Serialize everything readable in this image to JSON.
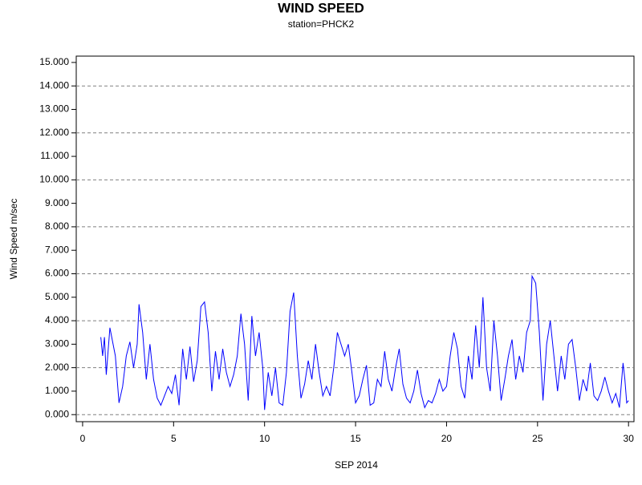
{
  "chart_data": {
    "type": "line",
    "title": "WIND SPEED",
    "subtitle": "station=PHCK2",
    "xlabel": "SEP 2014",
    "ylabel": "Wind Speed m/sec",
    "xlim": [
      -0.35,
      30.3
    ],
    "ylim": [
      -0.3,
      15.27
    ],
    "xticks": [
      0,
      5,
      10,
      15,
      20,
      25,
      30
    ],
    "yticks": [
      {
        "value": 0,
        "label": "0.000"
      },
      {
        "value": 1,
        "label": "1.000"
      },
      {
        "value": 2,
        "label": "2.000"
      },
      {
        "value": 3,
        "label": "3.000"
      },
      {
        "value": 4,
        "label": "4.000"
      },
      {
        "value": 5,
        "label": "5.000"
      },
      {
        "value": 6,
        "label": "6.000"
      },
      {
        "value": 7,
        "label": "7.000"
      },
      {
        "value": 8,
        "label": "8.000"
      },
      {
        "value": 9,
        "label": "9.000"
      },
      {
        "value": 10,
        "label": "10.000"
      },
      {
        "value": 11,
        "label": "11.000"
      },
      {
        "value": 12,
        "label": "12.000"
      },
      {
        "value": 13,
        "label": "13.000"
      },
      {
        "value": 14,
        "label": "14.000"
      },
      {
        "value": 15,
        "label": "15.000"
      }
    ],
    "grid": true,
    "x": [
      1.0,
      1.1,
      1.2,
      1.3,
      1.5,
      1.8,
      2.0,
      2.2,
      2.4,
      2.6,
      2.8,
      3.0,
      3.1,
      3.3,
      3.5,
      3.7,
      3.9,
      4.1,
      4.3,
      4.5,
      4.7,
      4.9,
      5.1,
      5.3,
      5.5,
      5.7,
      5.9,
      6.1,
      6.3,
      6.5,
      6.7,
      6.9,
      7.1,
      7.3,
      7.5,
      7.7,
      7.9,
      8.1,
      8.3,
      8.5,
      8.7,
      8.9,
      9.1,
      9.3,
      9.5,
      9.7,
      9.9,
      10.0,
      10.2,
      10.4,
      10.6,
      10.8,
      11.0,
      11.2,
      11.4,
      11.6,
      11.8,
      12.0,
      12.2,
      12.4,
      12.6,
      12.8,
      13.0,
      13.2,
      13.4,
      13.6,
      13.8,
      14.0,
      14.2,
      14.4,
      14.6,
      14.8,
      15.0,
      15.2,
      15.4,
      15.6,
      15.8,
      16.0,
      16.2,
      16.4,
      16.6,
      16.8,
      17.0,
      17.2,
      17.4,
      17.6,
      17.8,
      18.0,
      18.2,
      18.4,
      18.6,
      18.8,
      19.0,
      19.2,
      19.4,
      19.6,
      19.8,
      20.0,
      20.2,
      20.4,
      20.6,
      20.8,
      21.0,
      21.2,
      21.4,
      21.6,
      21.8,
      22.0,
      22.2,
      22.4,
      22.6,
      22.8,
      23.0,
      23.2,
      23.4,
      23.6,
      23.8,
      24.0,
      24.2,
      24.4,
      24.6,
      24.7,
      24.9,
      25.1,
      25.3,
      25.5,
      25.7,
      25.9,
      26.1,
      26.3,
      26.5,
      26.7,
      26.9,
      27.1,
      27.3,
      27.5,
      27.7,
      27.9,
      28.1,
      28.3,
      28.5,
      28.7,
      28.9,
      29.1,
      29.3,
      29.5,
      29.7,
      29.8,
      29.9,
      30.0
    ],
    "series": [
      {
        "name": "Wind Speed",
        "color": "#0000ff",
        "values": [
          3.3,
          2.5,
          3.3,
          1.7,
          3.7,
          2.5,
          0.5,
          1.2,
          2.5,
          3.1,
          2.0,
          3.0,
          4.7,
          3.5,
          1.5,
          3.0,
          1.5,
          0.7,
          0.4,
          0.8,
          1.2,
          0.9,
          1.7,
          0.4,
          2.8,
          1.5,
          2.9,
          1.4,
          2.3,
          4.6,
          4.8,
          3.5,
          1.0,
          2.7,
          1.5,
          2.8,
          1.8,
          1.2,
          1.7,
          2.5,
          4.3,
          3.0,
          0.6,
          4.2,
          2.5,
          3.5,
          2.0,
          0.2,
          1.8,
          0.8,
          2.0,
          0.5,
          0.4,
          1.8,
          4.4,
          5.2,
          2.5,
          0.7,
          1.3,
          2.3,
          1.5,
          3.0,
          1.8,
          0.8,
          1.2,
          0.8,
          2.0,
          3.5,
          3.0,
          2.5,
          3.0,
          1.8,
          0.5,
          0.8,
          1.5,
          2.1,
          0.4,
          0.5,
          1.5,
          1.2,
          2.7,
          1.5,
          1.0,
          2.0,
          2.8,
          1.3,
          0.7,
          0.5,
          1.0,
          1.9,
          0.9,
          0.3,
          0.6,
          0.5,
          0.9,
          1.5,
          1.0,
          1.2,
          2.5,
          3.5,
          2.8,
          1.2,
          0.7,
          2.5,
          1.5,
          3.8,
          2.0,
          5.0,
          2.0,
          1.0,
          4.0,
          2.5,
          0.6,
          1.5,
          2.5,
          3.2,
          1.5,
          2.5,
          1.8,
          3.5,
          4.0,
          5.9,
          5.6,
          3.5,
          0.6,
          3.0,
          4.0,
          2.5,
          1.0,
          2.5,
          1.5,
          3.0,
          3.2,
          2.0,
          0.6,
          1.5,
          1.0,
          2.2,
          0.8,
          0.6,
          1.0,
          1.6,
          1.0,
          0.5,
          0.9,
          0.3,
          2.2,
          1.5,
          0.5,
          0.6
        ]
      }
    ]
  }
}
